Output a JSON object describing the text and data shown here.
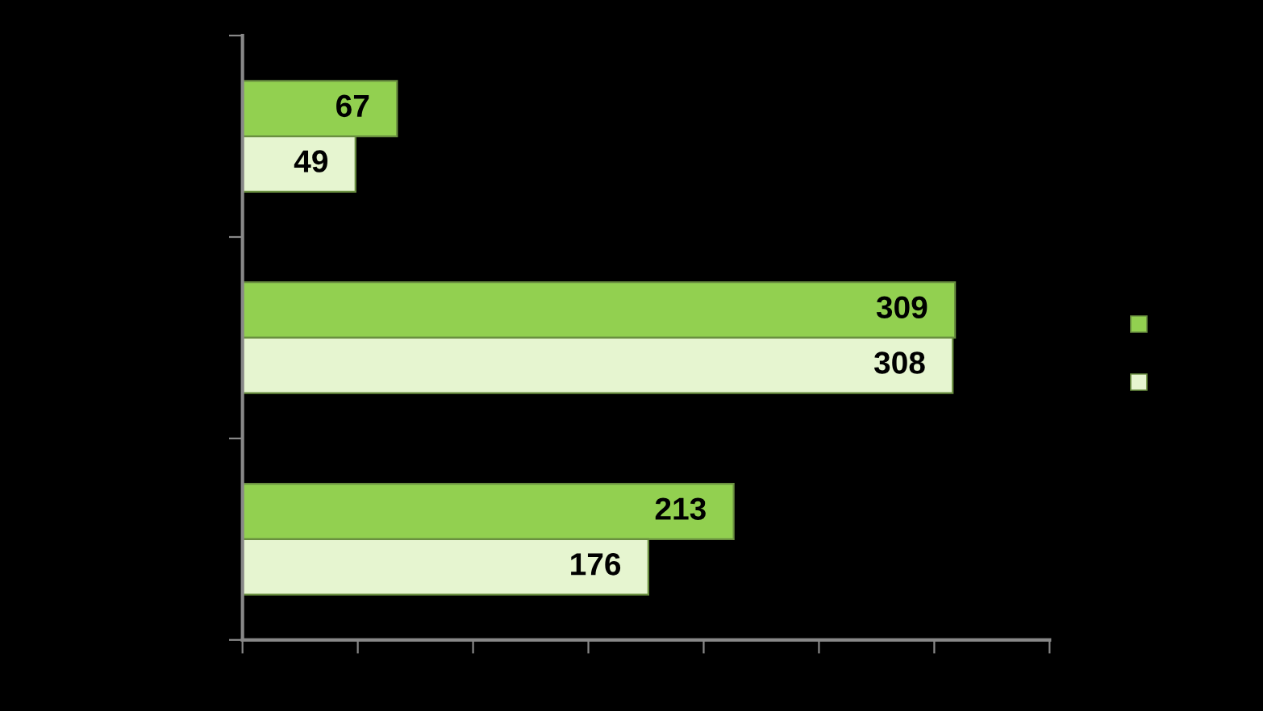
{
  "chart_data": {
    "type": "bar",
    "orientation": "horizontal",
    "categories": [
      null,
      null,
      null
    ],
    "series": [
      {
        "color": "#92d050",
        "values": [
          67,
          309,
          213
        ]
      },
      {
        "color": "#e6f5d0",
        "values": [
          49,
          308,
          176
        ]
      }
    ],
    "xlim": [
      0,
      350
    ],
    "xticks": [
      {
        "value": 0,
        "label": null
      },
      {
        "value": 50,
        "label": null
      },
      {
        "value": 100,
        "label": null
      },
      {
        "value": 150,
        "label": null
      },
      {
        "value": 200,
        "label": null
      },
      {
        "value": 250,
        "label": null
      },
      {
        "value": 300,
        "label": null
      },
      {
        "value": 350,
        "label": null
      }
    ],
    "data_labels": true,
    "grid": false
  }
}
